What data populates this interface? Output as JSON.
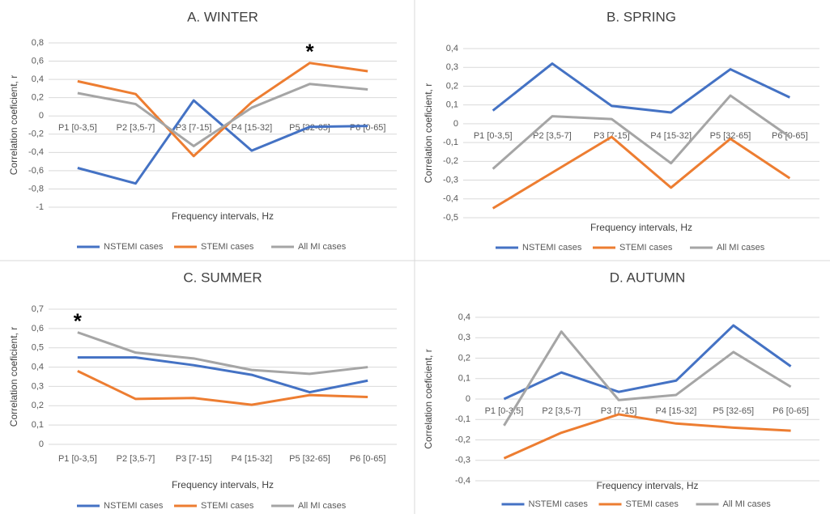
{
  "chart_data": [
    {
      "type": "line",
      "title": "A. WINTER",
      "x_label": "Frequency intervals, Hz",
      "y_label": "Correlation coeficient, r",
      "categories": [
        "P1 [0-3,5]",
        "P2 [3,5-7]",
        "P3 [7-15]",
        "P4 [15-32]",
        "P5 [32-65]",
        "P6 [0-65]"
      ],
      "series": [
        {
          "name": "NSTEMI cases",
          "color": "#4472c4",
          "values": [
            -0.57,
            -0.74,
            0.17,
            -0.38,
            -0.12,
            -0.11
          ]
        },
        {
          "name": "STEMI cases",
          "color": "#ed7d31",
          "values": [
            0.38,
            0.24,
            -0.44,
            0.15,
            0.58,
            0.49
          ]
        },
        {
          "name": "All MI cases",
          "color": "#a5a5a5",
          "values": [
            0.25,
            0.13,
            -0.33,
            0.09,
            0.35,
            0.29
          ]
        }
      ],
      "ylim": [
        -1,
        0.8
      ],
      "yticks": [
        -1,
        {
          "value": -0.8,
          "label": "-0,8"
        },
        {
          "value": -0.6,
          "label": "-0,6"
        },
        {
          "value": -0.4,
          "label": "-0,4"
        },
        {
          "value": -0.2,
          "label": "-0,2"
        },
        0,
        {
          "value": 0.2,
          "label": "0,2"
        },
        {
          "value": 0.4,
          "label": "0,4"
        },
        {
          "value": 0.6,
          "label": "0,6"
        },
        {
          "value": 0.8,
          "label": "0,8"
        }
      ],
      "grid": true,
      "legend": "bottom",
      "annotation": "*"
    },
    {
      "type": "line",
      "title": "B. SPRING",
      "x_label": "Frequency intervals, Hz",
      "y_label": "Correlation coeficient, r",
      "categories": [
        "P1 [0-3,5]",
        "P2 [3,5-7]",
        "P3 [7-15]",
        "P4 [15-32]",
        "P5 [32-65]",
        "P6 [0-65]"
      ],
      "series": [
        {
          "name": "NSTEMI cases",
          "color": "#4472c4",
          "values": [
            0.07,
            0.32,
            0.095,
            0.06,
            0.29,
            0.14
          ]
        },
        {
          "name": "STEMI cases",
          "color": "#ed7d31",
          "values": [
            -0.45,
            -0.26,
            -0.07,
            -0.34,
            -0.08,
            -0.29
          ]
        },
        {
          "name": "All MI cases",
          "color": "#a5a5a5",
          "values": [
            -0.24,
            0.04,
            0.025,
            -0.21,
            0.15,
            -0.07
          ]
        }
      ],
      "ylim": [
        -0.5,
        0.4
      ],
      "yticks": [
        {
          "value": -0.5,
          "label": "-0,5"
        },
        {
          "value": -0.4,
          "label": "-0,4"
        },
        {
          "value": -0.3,
          "label": "-0,3"
        },
        {
          "value": -0.2,
          "label": "-0,2"
        },
        {
          "value": -0.1,
          "label": "-0,1"
        },
        0,
        {
          "value": 0.1,
          "label": "0,1"
        },
        {
          "value": 0.2,
          "label": "0,2"
        },
        {
          "value": 0.3,
          "label": "0,3"
        },
        {
          "value": 0.4,
          "label": "0,4"
        }
      ],
      "grid": true,
      "legend": "bottom"
    },
    {
      "type": "line",
      "title": "C. SUMMER",
      "x_label": "Frequency intervals, Hz",
      "y_label": "Correlation coeficient, r",
      "categories": [
        "P1 [0-3,5]",
        "P2 [3,5-7]",
        "P3 [7-15]",
        "P4 [15-32]",
        "P5 [32-65]",
        "P6 [0-65]"
      ],
      "series": [
        {
          "name": "NSTEMI cases",
          "color": "#4472c4",
          "values": [
            0.45,
            0.45,
            0.41,
            0.36,
            0.27,
            0.33
          ]
        },
        {
          "name": "STEMI cases",
          "color": "#ed7d31",
          "values": [
            0.38,
            0.235,
            0.24,
            0.205,
            0.255,
            0.245
          ]
        },
        {
          "name": "All MI cases",
          "color": "#a5a5a5",
          "values": [
            0.58,
            0.475,
            0.445,
            0.385,
            0.365,
            0.4
          ]
        }
      ],
      "ylim": [
        0,
        0.7
      ],
      "yticks": [
        0,
        {
          "value": 0.1,
          "label": "0,1"
        },
        {
          "value": 0.2,
          "label": "0,2"
        },
        {
          "value": 0.3,
          "label": "0,3"
        },
        {
          "value": 0.4,
          "label": "0,4"
        },
        {
          "value": 0.5,
          "label": "0,5"
        },
        {
          "value": 0.6,
          "label": "0,6"
        },
        {
          "value": 0.7,
          "label": "0,7"
        }
      ],
      "grid": true,
      "legend": "bottom",
      "annotation": "*"
    },
    {
      "type": "line",
      "title": "D. AUTUMN",
      "x_label": "Frequency intervals, Hz",
      "y_label": "Correlation coeficient, r",
      "categories": [
        "P1 [0-3,5]",
        "P2 [3,5-7]",
        "P3 [7-15]",
        "P4 [15-32]",
        "P5 [32-65]",
        "P6 [0-65]"
      ],
      "series": [
        {
          "name": "NSTEMI cases",
          "color": "#4472c4",
          "values": [
            0.0,
            0.13,
            0.035,
            0.09,
            0.36,
            0.16
          ]
        },
        {
          "name": "STEMI cases",
          "color": "#ed7d31",
          "values": [
            -0.29,
            -0.165,
            -0.075,
            -0.12,
            -0.14,
            -0.155
          ]
        },
        {
          "name": "All MI cases",
          "color": "#a5a5a5",
          "values": [
            -0.13,
            0.33,
            -0.005,
            0.02,
            0.23,
            0.06
          ]
        }
      ],
      "ylim": [
        -0.4,
        0.4
      ],
      "yticks": [
        {
          "value": -0.4,
          "label": "-0,4"
        },
        {
          "value": -0.3,
          "label": "-0,3"
        },
        {
          "value": -0.2,
          "label": "-0,2"
        },
        {
          "value": -0.1,
          "label": "-0,1"
        },
        0,
        {
          "value": 0.1,
          "label": "0,1"
        },
        {
          "value": 0.2,
          "label": "0,2"
        },
        {
          "value": 0.3,
          "label": "0,3"
        },
        {
          "value": 0.4,
          "label": "0,4"
        }
      ],
      "grid": true,
      "legend": "bottom"
    }
  ]
}
